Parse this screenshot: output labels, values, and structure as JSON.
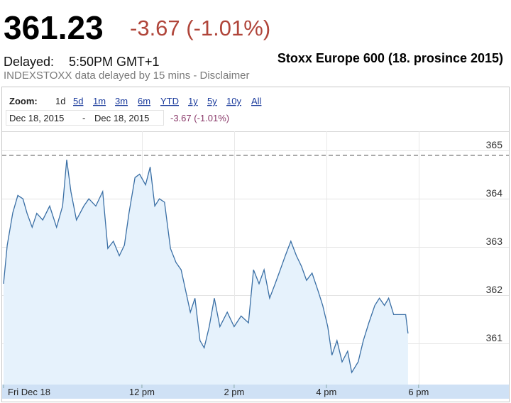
{
  "quote": {
    "price": "361.23",
    "change": "-3.67 (-1.01%)",
    "delayed_label": "Delayed:",
    "time": "5:50PM GMT+1",
    "source_note": "INDEXSTOXX data delayed by 15 mins - Disclaimer"
  },
  "zoom": {
    "label": "Zoom:",
    "options": [
      "1d",
      "5d",
      "1m",
      "3m",
      "6m",
      "YTD",
      "1y",
      "5y",
      "10y",
      "All"
    ],
    "selected_index": 0
  },
  "range": {
    "from": "Dec 18, 2015",
    "separator": "-",
    "to": "Dec 18, 2015",
    "change": "-3.67 (-1.01%)"
  },
  "chart_data": {
    "type": "area",
    "title": "Stoxx Europe 600 (18. prosince 2015)",
    "x": [
      9.0,
      9.08,
      9.2,
      9.31,
      9.42,
      9.51,
      9.62,
      9.72,
      9.85,
      10.0,
      10.15,
      10.28,
      10.37,
      10.46,
      10.58,
      10.74,
      10.85,
      11.0,
      11.15,
      11.26,
      11.38,
      11.51,
      11.62,
      11.72,
      11.85,
      11.95,
      12.08,
      12.18,
      12.28,
      12.38,
      12.49,
      12.62,
      12.74,
      12.85,
      12.95,
      13.05,
      13.15,
      13.26,
      13.35,
      13.46,
      13.57,
      13.69,
      13.85,
      14.0,
      14.15,
      14.31,
      14.42,
      14.54,
      14.65,
      14.77,
      14.89,
      15.0,
      15.11,
      15.23,
      15.35,
      15.46,
      15.57,
      15.69,
      15.82,
      15.92,
      16.03,
      16.12,
      16.23,
      16.34,
      16.46,
      16.55,
      16.69,
      16.8,
      16.92,
      17.05,
      17.15,
      17.26,
      17.35,
      17.46,
      17.57,
      17.72,
      17.77
    ],
    "series": [
      {
        "name": "Stoxx Europe 600",
        "color": "#3a6fa5",
        "fill": "#e6f2fc",
        "values": [
          362.24,
          363.04,
          363.71,
          364.07,
          364.0,
          363.7,
          363.41,
          363.7,
          363.56,
          363.85,
          363.41,
          363.85,
          364.81,
          364.15,
          363.56,
          363.85,
          364.0,
          363.85,
          364.15,
          362.97,
          363.12,
          362.82,
          363.04,
          363.71,
          364.44,
          364.51,
          364.29,
          364.66,
          363.85,
          364.0,
          363.93,
          362.97,
          362.68,
          362.53,
          362.09,
          361.65,
          361.94,
          361.06,
          360.91,
          361.35,
          361.94,
          361.35,
          361.65,
          361.35,
          361.57,
          361.43,
          362.53,
          362.24,
          362.53,
          361.94,
          362.24,
          362.53,
          362.82,
          363.12,
          362.82,
          362.6,
          362.31,
          362.46,
          362.09,
          361.79,
          361.35,
          360.76,
          361.06,
          360.62,
          360.84,
          360.4,
          360.62,
          361.06,
          361.43,
          361.79,
          361.94,
          361.79,
          361.94,
          361.6,
          361.6,
          361.6,
          361.21
        ]
      }
    ],
    "previous_close": 364.9,
    "xlim": [
      9,
      19.88
    ],
    "xticks": [
      {
        "value": 9,
        "label": "Fri Dec 18"
      },
      {
        "value": 12,
        "label": "12 pm"
      },
      {
        "value": 14,
        "label": "2 pm"
      },
      {
        "value": 16,
        "label": "4 pm"
      },
      {
        "value": 18,
        "label": "6 pm"
      }
    ],
    "ylim": [
      360.15,
      365.4
    ],
    "yticks": [
      361,
      362,
      363,
      364,
      365
    ],
    "grid": true
  }
}
